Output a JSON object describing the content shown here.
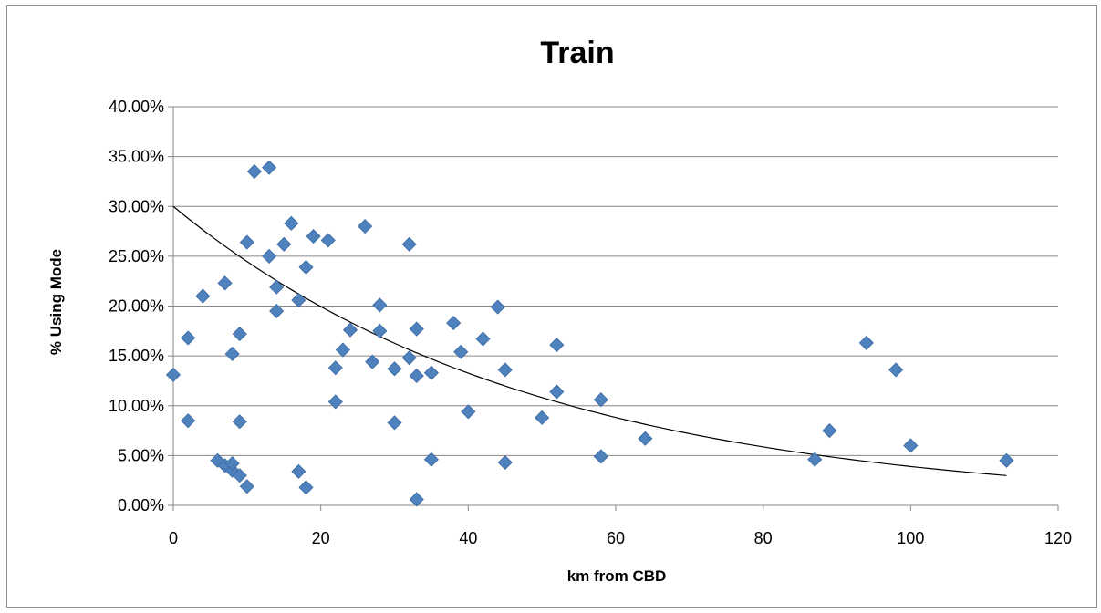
{
  "colors": {
    "marker": "#4f81bd",
    "marker_stroke": "#3a6aa3",
    "trendline": "#000000",
    "gridline": "#868686",
    "axis": "#868686"
  },
  "chart_data": {
    "type": "scatter",
    "title": "Train",
    "xlabel": "km from CBD",
    "ylabel": "% Using Mode",
    "xlim": [
      0,
      120
    ],
    "ylim": [
      0,
      0.4
    ],
    "x_ticks": [
      0,
      20,
      40,
      60,
      80,
      100,
      120
    ],
    "x_tick_labels": [
      "0",
      "20",
      "40",
      "60",
      "80",
      "100",
      "120"
    ],
    "y_ticks": [
      0,
      0.05,
      0.1,
      0.15,
      0.2,
      0.25,
      0.3,
      0.35,
      0.4
    ],
    "y_tick_labels": [
      "0.00%",
      "5.00%",
      "10.00%",
      "15.00%",
      "20.00%",
      "25.00%",
      "30.00%",
      "35.00%",
      "40.00%"
    ],
    "grid": "horizontal",
    "marker": "diamond",
    "trendline": {
      "type": "exponential",
      "a": 0.3,
      "b": -0.0204,
      "x_range": [
        0,
        113
      ]
    },
    "points": [
      [
        0,
        0.131
      ],
      [
        2,
        0.168
      ],
      [
        2,
        0.085
      ],
      [
        4,
        0.21
      ],
      [
        6,
        0.045
      ],
      [
        7,
        0.223
      ],
      [
        7,
        0.04
      ],
      [
        8,
        0.152
      ],
      [
        8,
        0.035
      ],
      [
        8,
        0.042
      ],
      [
        9,
        0.172
      ],
      [
        9,
        0.084
      ],
      [
        9,
        0.03
      ],
      [
        10,
        0.264
      ],
      [
        10,
        0.019
      ],
      [
        11,
        0.335
      ],
      [
        13,
        0.339
      ],
      [
        13,
        0.25
      ],
      [
        14,
        0.219
      ],
      [
        14,
        0.195
      ],
      [
        15,
        0.262
      ],
      [
        16,
        0.283
      ],
      [
        17,
        0.206
      ],
      [
        17,
        0.034
      ],
      [
        18,
        0.239
      ],
      [
        18,
        0.018
      ],
      [
        19,
        0.27
      ],
      [
        21,
        0.266
      ],
      [
        22,
        0.138
      ],
      [
        22,
        0.104
      ],
      [
        23,
        0.156
      ],
      [
        24,
        0.176
      ],
      [
        26,
        0.28
      ],
      [
        27,
        0.144
      ],
      [
        28,
        0.201
      ],
      [
        28,
        0.175
      ],
      [
        30,
        0.137
      ],
      [
        30,
        0.083
      ],
      [
        32,
        0.262
      ],
      [
        32,
        0.148
      ],
      [
        33,
        0.177
      ],
      [
        33,
        0.13
      ],
      [
        33,
        0.006
      ],
      [
        35,
        0.133
      ],
      [
        35,
        0.046
      ],
      [
        38,
        0.183
      ],
      [
        39,
        0.154
      ],
      [
        40,
        0.094
      ],
      [
        42,
        0.167
      ],
      [
        44,
        0.199
      ],
      [
        45,
        0.136
      ],
      [
        45,
        0.043
      ],
      [
        50,
        0.088
      ],
      [
        52,
        0.161
      ],
      [
        52,
        0.114
      ],
      [
        58,
        0.106
      ],
      [
        58,
        0.049
      ],
      [
        64,
        0.067
      ],
      [
        87,
        0.046
      ],
      [
        89,
        0.075
      ],
      [
        94,
        0.163
      ],
      [
        98,
        0.136
      ],
      [
        100,
        0.06
      ],
      [
        113,
        0.045
      ]
    ]
  }
}
